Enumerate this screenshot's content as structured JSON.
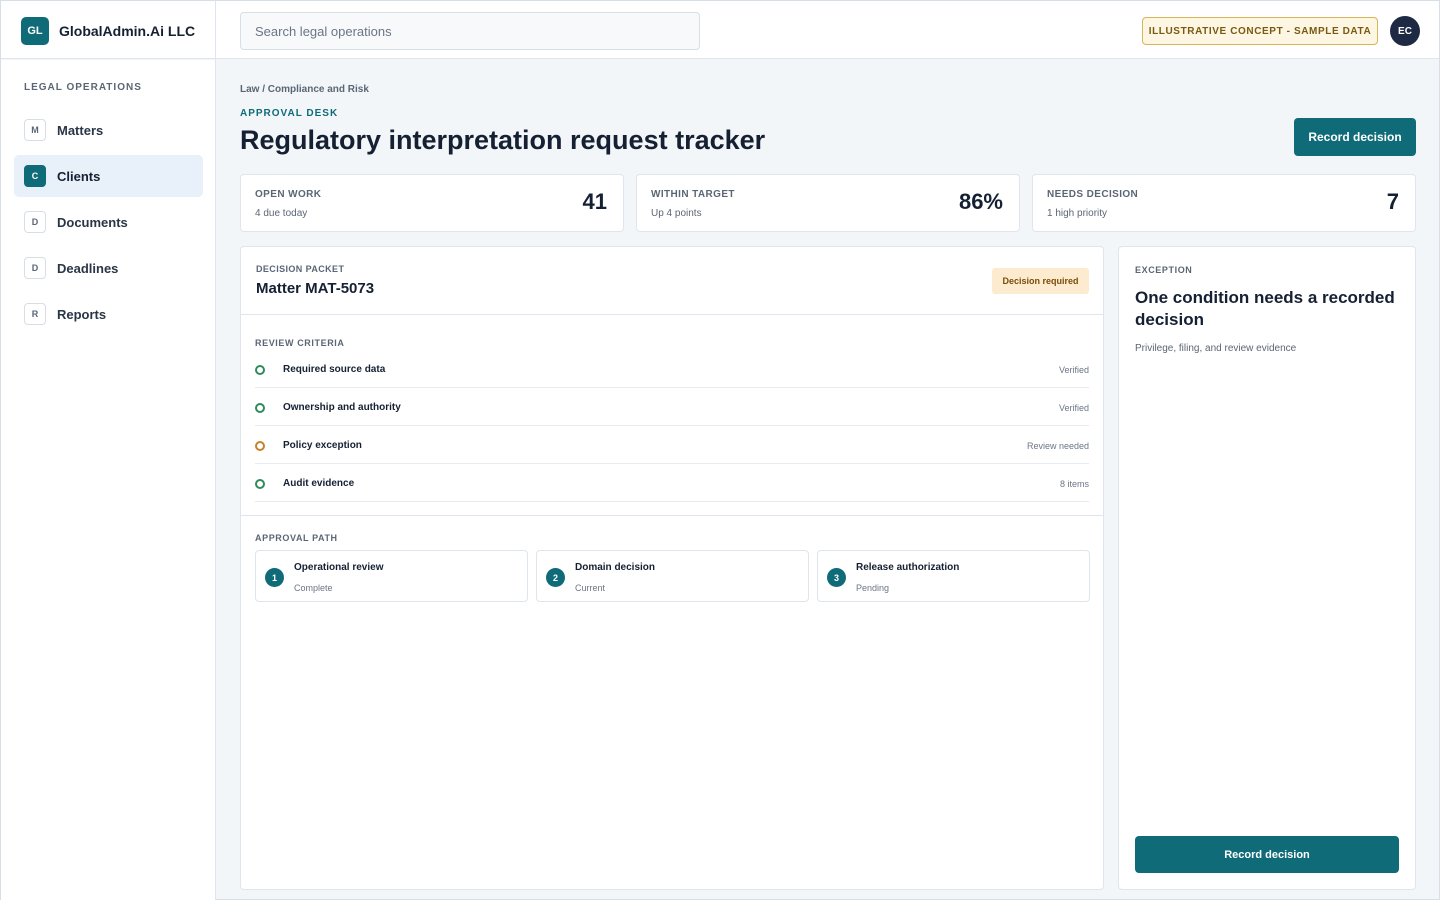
{
  "brand": {
    "badge": "GL",
    "name": "GlobalAdmin.Ai LLC"
  },
  "search": {
    "placeholder": "Search legal operations"
  },
  "header": {
    "concept_badge": "ILLUSTRATIVE CONCEPT - SAMPLE DATA",
    "avatar_initials": "EC"
  },
  "sidebar": {
    "heading": "LEGAL OPERATIONS",
    "items": [
      {
        "icon": "M",
        "label": "Matters"
      },
      {
        "icon": "C",
        "label": "Clients",
        "active": true
      },
      {
        "icon": "D",
        "label": "Documents"
      },
      {
        "icon": "D",
        "label": "Deadlines"
      },
      {
        "icon": "R",
        "label": "Reports"
      }
    ]
  },
  "main": {
    "breadcrumb": "Law / Compliance and Risk",
    "eyebrow": "APPROVAL DESK",
    "title": "Regulatory interpretation request tracker",
    "primary_action": "Record decision"
  },
  "kpis": [
    {
      "label": "OPEN WORK",
      "sub": "4 due today",
      "value": "41"
    },
    {
      "label": "WITHIN TARGET",
      "sub": "Up 4 points",
      "value": "86%"
    },
    {
      "label": "NEEDS DECISION",
      "sub": "1 high priority",
      "value": "7"
    }
  ],
  "packet": {
    "eyebrow": "DECISION PACKET",
    "title": "Matter MAT-5073",
    "status": "Decision required",
    "criteria_label": "REVIEW CRITERIA",
    "criteria": [
      {
        "name": "Required source data",
        "status": "Verified",
        "state": "ok"
      },
      {
        "name": "Ownership and authority",
        "status": "Verified",
        "state": "ok"
      },
      {
        "name": "Policy exception",
        "status": "Review needed",
        "state": "warn"
      },
      {
        "name": "Audit evidence",
        "status": "8 items",
        "state": "ok"
      }
    ],
    "path_label": "APPROVAL PATH",
    "steps": [
      {
        "num": "1",
        "title": "Operational review",
        "status": "Complete"
      },
      {
        "num": "2",
        "title": "Domain decision",
        "status": "Current"
      },
      {
        "num": "3",
        "title": "Release authorization",
        "status": "Pending"
      }
    ]
  },
  "exception": {
    "eyebrow": "EXCEPTION",
    "title": "One condition needs a recorded decision",
    "description": "Privilege, filing, and review evidence",
    "action": "Record decision"
  },
  "colors": {
    "accent": "#0f6b78",
    "ok": "#2f8a5c",
    "warn": "#c7832a",
    "avatar": "#1e2a44",
    "pill_bg": "#fdebcf"
  }
}
